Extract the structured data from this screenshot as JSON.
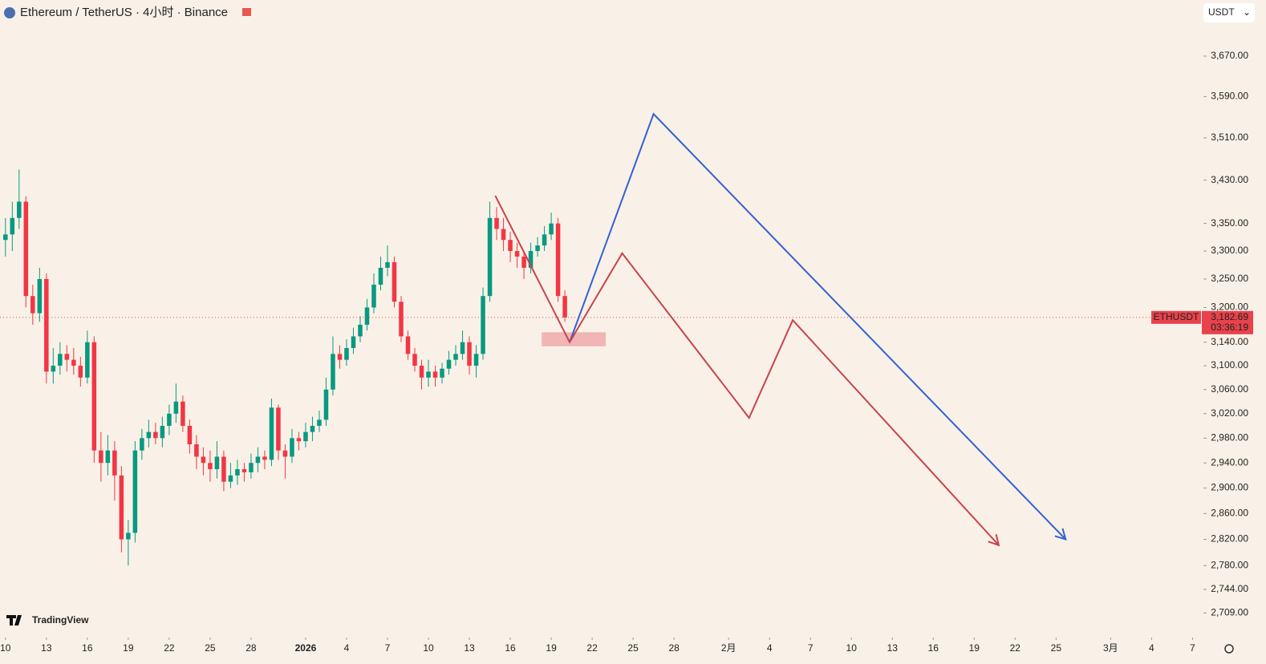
{
  "header": {
    "title": "Ethereum / TetherUS · 4小时 · Binance",
    "currency_button": "USDT",
    "logo": "TradingView"
  },
  "chart_data": {
    "type": "candlestick",
    "log_scale": true,
    "up_color": "#089981",
    "down_color": "#f23645",
    "x": [
      0,
      0.5,
      1,
      1.5,
      2,
      2.5,
      3,
      3.5,
      4,
      4.5,
      5,
      5.5,
      6,
      6.5,
      7,
      7.5,
      8,
      8.5,
      9,
      9.5,
      10,
      10.5,
      11,
      11.5,
      12,
      12.5,
      13,
      13.5,
      14,
      14.5,
      15,
      15.5,
      16,
      16.5,
      17,
      17.5,
      18,
      18.5,
      19,
      19.5,
      20,
      20.5,
      21,
      21.5,
      22,
      22.5,
      23,
      23.5,
      24,
      24.5,
      25,
      25.5,
      26,
      26.5,
      27,
      27.5,
      28,
      28.5,
      29,
      29.5,
      30,
      30.5,
      31,
      31.5,
      32,
      32.5,
      33,
      33.5,
      34,
      34.5,
      35,
      35.5,
      36,
      36.5,
      37,
      37.5,
      38,
      38.5,
      39,
      39.5,
      40,
      40.5,
      41
    ],
    "open": [
      3320,
      3330,
      3360,
      3390,
      3220,
      3190,
      3250,
      3090,
      3100,
      3120,
      3110,
      3100,
      3080,
      3140,
      2960,
      2940,
      2960,
      2920,
      2820,
      2830,
      2960,
      2980,
      2990,
      2980,
      3000,
      3020,
      3040,
      3000,
      2970,
      2950,
      2940,
      2930,
      2950,
      2910,
      2920,
      2930,
      2925,
      2940,
      2950,
      2945,
      3030,
      2960,
      2950,
      2980,
      2975,
      2990,
      3000,
      3010,
      3060,
      3120,
      3110,
      3130,
      3150,
      3170,
      3200,
      3240,
      3270,
      3280,
      3210,
      3150,
      3120,
      3100,
      3080,
      3090,
      3080,
      3095,
      3110,
      3120,
      3140,
      3100,
      3120,
      3220,
      3360,
      3340,
      3320,
      3300,
      3290,
      3270,
      3300,
      3310,
      3330,
      3350,
      3220
    ],
    "high": [
      3360,
      3390,
      3450,
      3400,
      3240,
      3270,
      3260,
      3130,
      3140,
      3135,
      3130,
      3115,
      3160,
      3150,
      2990,
      2985,
      2975,
      2935,
      2850,
      2975,
      2995,
      3010,
      3005,
      3015,
      3035,
      3070,
      3050,
      3010,
      2985,
      2965,
      2960,
      2975,
      2960,
      2940,
      2945,
      2940,
      2955,
      2965,
      2960,
      3045,
      3035,
      2970,
      2995,
      2990,
      3005,
      3015,
      3025,
      3080,
      3150,
      3135,
      3145,
      3165,
      3185,
      3215,
      3260,
      3290,
      3310,
      3290,
      3220,
      3160,
      3130,
      3110,
      3110,
      3100,
      3105,
      3125,
      3135,
      3160,
      3150,
      3135,
      3235,
      3390,
      3380,
      3360,
      3335,
      3315,
      3300,
      3315,
      3325,
      3345,
      3370,
      3360,
      3230
    ],
    "low": [
      3290,
      3300,
      3340,
      3200,
      3170,
      3175,
      3070,
      3070,
      3085,
      3090,
      3085,
      3065,
      3070,
      2940,
      2910,
      2920,
      2880,
      2800,
      2780,
      2815,
      2945,
      2965,
      2970,
      2965,
      2985,
      3005,
      2990,
      2955,
      2930,
      2920,
      2910,
      2915,
      2895,
      2900,
      2905,
      2910,
      2915,
      2925,
      2930,
      2935,
      2945,
      2915,
      2940,
      2960,
      2965,
      2975,
      2990,
      3000,
      3050,
      3095,
      3100,
      3120,
      3140,
      3160,
      3190,
      3230,
      3255,
      3200,
      3140,
      3110,
      3090,
      3060,
      3065,
      3065,
      3070,
      3085,
      3100,
      3110,
      3085,
      3080,
      3110,
      3210,
      3320,
      3300,
      3280,
      3270,
      3250,
      3260,
      3290,
      3300,
      3320,
      3210,
      3175
    ],
    "close": [
      3330,
      3360,
      3390,
      3220,
      3190,
      3250,
      3090,
      3100,
      3120,
      3110,
      3100,
      3080,
      3140,
      2960,
      2940,
      2960,
      2920,
      2820,
      2830,
      2960,
      2980,
      2990,
      2980,
      3000,
      3020,
      3040,
      3000,
      2970,
      2950,
      2940,
      2930,
      2950,
      2910,
      2920,
      2930,
      2925,
      2940,
      2950,
      2945,
      3030,
      2960,
      2950,
      2980,
      2975,
      2990,
      3000,
      3010,
      3060,
      3120,
      3110,
      3130,
      3150,
      3170,
      3200,
      3240,
      3270,
      3280,
      3210,
      3150,
      3120,
      3100,
      3080,
      3090,
      3080,
      3095,
      3110,
      3120,
      3140,
      3100,
      3120,
      3220,
      3360,
      3340,
      3320,
      3300,
      3290,
      3270,
      3300,
      3310,
      3330,
      3350,
      3220,
      3182.69
    ],
    "last_price": {
      "symbol": "ETHUSDT",
      "value": 3182.69,
      "label": "3,182.69",
      "countdown": "03:36:19",
      "color": "#e8424c"
    },
    "xlim": [
      -0.4,
      87.8
    ],
    "ylim": [
      2673,
      3784
    ],
    "xticks": [
      {
        "value": 0,
        "label": "10"
      },
      {
        "value": 3,
        "label": "13"
      },
      {
        "value": 6,
        "label": "16"
      },
      {
        "value": 9,
        "label": "19"
      },
      {
        "value": 12,
        "label": "22"
      },
      {
        "value": 15,
        "label": "25"
      },
      {
        "value": 18,
        "label": "28"
      },
      {
        "value": 22,
        "label": "2026"
      },
      {
        "value": 25,
        "label": "4"
      },
      {
        "value": 28,
        "label": "7"
      },
      {
        "value": 31,
        "label": "10"
      },
      {
        "value": 34,
        "label": "13"
      },
      {
        "value": 37,
        "label": "16"
      },
      {
        "value": 40,
        "label": "19"
      },
      {
        "value": 43,
        "label": "22"
      },
      {
        "value": 46,
        "label": "25"
      },
      {
        "value": 49,
        "label": "28"
      },
      {
        "value": 53,
        "label": "2月"
      },
      {
        "value": 56,
        "label": "4"
      },
      {
        "value": 59,
        "label": "7"
      },
      {
        "value": 62,
        "label": "10"
      },
      {
        "value": 65,
        "label": "13"
      },
      {
        "value": 68,
        "label": "16"
      },
      {
        "value": 71,
        "label": "19"
      },
      {
        "value": 74,
        "label": "22"
      },
      {
        "value": 77,
        "label": "25"
      },
      {
        "value": 81,
        "label": "3月"
      },
      {
        "value": 84,
        "label": "4"
      },
      {
        "value": 87,
        "label": "7"
      }
    ],
    "yticks": [
      {
        "value": 3670,
        "label": "3,670.00"
      },
      {
        "value": 3590,
        "label": "3,590.00"
      },
      {
        "value": 3510,
        "label": "3,510.00"
      },
      {
        "value": 3430,
        "label": "3,430.00"
      },
      {
        "value": 3350,
        "label": "3,350.00"
      },
      {
        "value": 3300,
        "label": "3,300.00"
      },
      {
        "value": 3250,
        "label": "3,250.00"
      },
      {
        "value": 3200,
        "label": "3,200.00"
      },
      {
        "value": 3140,
        "label": "3,140.00"
      },
      {
        "value": 3100,
        "label": "3,100.00"
      },
      {
        "value": 3060,
        "label": "3,060.00"
      },
      {
        "value": 3020,
        "label": "3,020.00"
      },
      {
        "value": 2980,
        "label": "2,980.00"
      },
      {
        "value": 2940,
        "label": "2,940.00"
      },
      {
        "value": 2900,
        "label": "2,900.00"
      },
      {
        "value": 2860,
        "label": "2,860.00"
      },
      {
        "value": 2820,
        "label": "2,820.00"
      },
      {
        "value": 2780,
        "label": "2,780.00"
      },
      {
        "value": 2744,
        "label": "2,744.00"
      },
      {
        "value": 2709,
        "label": "2,709.00"
      }
    ],
    "drawings": [
      {
        "color": "#3360d4",
        "x": [
          41.35,
          47.5,
          77.7
        ],
        "y": [
          3140,
          3556,
          2820
        ]
      },
      {
        "color": "#c8434d",
        "x": [
          35.9,
          41.35,
          45.2,
          54.5,
          57.7,
          72.8
        ],
        "y": [
          3401,
          3140,
          3296,
          3013,
          3178,
          2811
        ]
      }
    ],
    "zones": [
      {
        "color": "#eeaaaa",
        "x": [
          39.3,
          44
        ],
        "y": [
          3133,
          3157
        ]
      }
    ]
  }
}
